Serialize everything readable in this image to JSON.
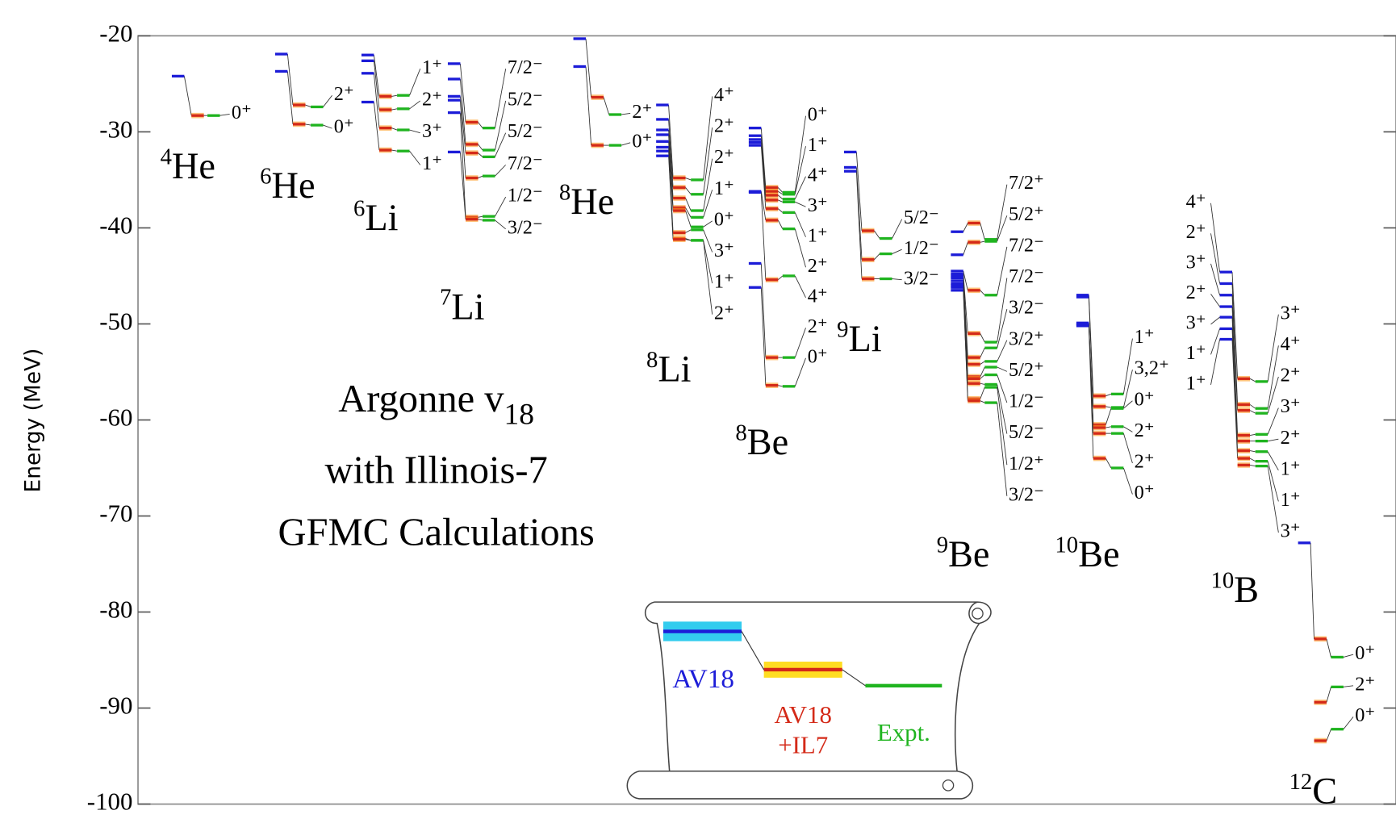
{
  "chart_data": {
    "type": "levels",
    "ylabel": "Energy (MeV)",
    "ylim": [
      -100,
      -20
    ],
    "yticks": [
      -100,
      -90,
      -80,
      -70,
      -60,
      -50,
      -40,
      -30,
      -20
    ],
    "colors": {
      "av18": "#1c1cd8",
      "il7": "#d42a18",
      "expt": "#1fb41f"
    },
    "annotation": {
      "line1": "Argonne v",
      "line1_sub": "18",
      "line2": "with Illinois-7",
      "line3": "GFMC Calculations"
    },
    "legend": {
      "av18": "AV18",
      "il7_top": "AV18",
      "il7_bottom": "+IL7",
      "expt": "Expt."
    },
    "nuclei": [
      {
        "mass": "4",
        "symbol": "He",
        "av18": [
          -24.2
        ],
        "il7": [
          -28.3
        ],
        "expt": [
          -28.3
        ],
        "labels": [
          "0⁺"
        ]
      },
      {
        "mass": "6",
        "symbol": "He",
        "av18": [
          -21.9,
          -23.7
        ],
        "il7": [
          -27.2,
          -29.2
        ],
        "expt": [
          -27.4,
          -29.3
        ],
        "labels": [
          "2⁺",
          "0⁺"
        ]
      },
      {
        "mass": "6",
        "symbol": "Li",
        "av18": [
          -22.0,
          -22.6,
          -23.9,
          -26.9
        ],
        "il7": [
          -26.3,
          -27.7,
          -29.6,
          -31.9
        ],
        "expt": [
          -26.2,
          -27.6,
          -29.8,
          -32.0
        ],
        "labels": [
          "1⁺",
          "2⁺",
          "3⁺",
          "1⁺"
        ]
      },
      {
        "mass": "7",
        "symbol": "Li",
        "av18": [
          -22.9,
          -24.5,
          -26.3,
          -26.7,
          -28.0,
          -32.1
        ],
        "il7": [
          -29.0,
          -31.3,
          -32.2,
          -34.8,
          -38.9,
          -39.1
        ],
        "expt": [
          -29.6,
          -31.9,
          -32.6,
          -34.6,
          -38.8,
          -39.2
        ],
        "labels": [
          "7/2⁻",
          "5/2⁻",
          "5/2⁻",
          "7/2⁻",
          "1/2⁻",
          "3/2⁻"
        ]
      },
      {
        "mass": "8",
        "symbol": "He",
        "av18": [
          -20.3,
          -23.2
        ],
        "il7": [
          -26.4,
          -31.4
        ],
        "expt": [
          -28.2,
          -31.4
        ],
        "labels": [
          "2⁺",
          "0⁺"
        ]
      },
      {
        "mass": "8",
        "symbol": "Li",
        "av18": [
          -27.2,
          -28.7,
          -29.8,
          -30.3,
          -31.0,
          -31.6,
          -32.0,
          -32.5
        ],
        "il7": [
          -34.8,
          -35.8,
          -36.9,
          -37.9,
          -38.2,
          -40.5,
          -41.1,
          -41.2
        ],
        "expt": [
          -35.0,
          -36.5,
          -38.2,
          -38.9,
          -39.9,
          -40.2,
          -41.3,
          -41.3
        ],
        "labels": [
          "4⁺",
          "2⁺",
          "2⁺",
          "1⁺",
          "0⁺",
          "3⁺",
          "1⁺",
          "2⁺"
        ]
      },
      {
        "mass": "8",
        "symbol": "Be",
        "av18": [
          -29.6,
          -30.4,
          -30.8,
          -31.1,
          -31.4,
          -36.2,
          -36.3,
          -43.7,
          -46.2
        ],
        "il7": [
          -35.8,
          -36.2,
          -36.6,
          -37.1,
          -38.0,
          -39.2,
          -45.4,
          -53.5,
          -56.4
        ],
        "expt": [
          -36.3,
          -36.5,
          -37.0,
          -37.3,
          -38.4,
          -40.1,
          -45.0,
          -53.5,
          -56.5
        ],
        "labels": [
          "0⁺",
          "1⁺",
          "4⁺",
          "3⁺",
          "1⁺",
          "2⁺",
          "4⁺",
          "2⁺",
          "0⁺"
        ]
      },
      {
        "mass": "9",
        "symbol": "Li",
        "av18": [
          -32.1,
          -33.7,
          -34.1
        ],
        "il7": [
          -40.3,
          -43.3,
          -45.3
        ],
        "expt": [
          -41.1,
          -42.7,
          -45.3
        ],
        "labels": [
          "5/2⁻",
          "1/2⁻",
          "3/2⁻"
        ]
      },
      {
        "mass": "9",
        "symbol": "Be",
        "av18": [
          -40.4,
          -42.8,
          -44.5,
          -44.8,
          -45.0,
          -45.2,
          -45.5,
          -45.8,
          -46.0,
          -46.2,
          -46.5
        ],
        "il7": [
          -39.5,
          -41.5,
          -46.5,
          -51.0,
          -53.5,
          -54.2,
          -55.5,
          -55.7,
          -56.2,
          -57.8,
          -58.0
        ],
        "expt": [
          -41.2,
          -41.4,
          -47.0,
          -51.9,
          -52.5,
          -53.9,
          -54.5,
          -55.3,
          -56.3,
          -56.6,
          -58.2
        ],
        "labels": [
          "7/2⁺",
          "5/2⁺",
          "7/2⁻",
          "7/2⁻",
          "3/2⁻",
          "3/2⁺",
          "5/2⁺",
          "1/2⁻",
          "5/2⁻",
          "1/2⁺",
          "3/2⁻"
        ]
      },
      {
        "mass": "10",
        "symbol": "Be",
        "av18": [
          -47.0,
          -47.2,
          -49.9,
          -50.0,
          -50.1,
          -50.2
        ],
        "il7": [
          -57.5,
          -58.6,
          -60.5,
          -60.8,
          -61.4,
          -64.0
        ],
        "expt": [
          -57.3,
          -58.7,
          -58.8,
          -60.7,
          -61.4,
          -65.0
        ],
        "labels": [
          "1⁺",
          "3,2⁺",
          "0⁺",
          "2⁺",
          "2⁺",
          "0⁺"
        ]
      },
      {
        "mass": "10",
        "symbol": "B",
        "av18": [
          -44.6,
          -45.8,
          -47.0,
          -48.2,
          -49.3,
          -50.5,
          -51.6
        ],
        "av18_labels": [
          "4⁺",
          "2⁺",
          "3⁺",
          "2⁺",
          "3⁺",
          "1⁺",
          "1⁺"
        ],
        "il7": [
          -55.7,
          -58.4,
          -59.0,
          -61.6,
          -62.2,
          -63.2,
          -64.0,
          -64.7
        ],
        "expt": [
          -56.0,
          -58.8,
          -59.3,
          -61.5,
          -62.2,
          -63.3,
          -64.3,
          -64.8
        ],
        "labels": [
          "3⁺",
          "4⁺",
          "2⁺",
          "3⁺",
          "2⁺",
          "1⁺",
          "1⁺",
          "3⁺"
        ]
      },
      {
        "mass": "12",
        "symbol": "C",
        "av18": [
          -72.8
        ],
        "il7": [
          -82.8,
          -89.4,
          -93.4
        ],
        "expt": [
          -84.7,
          -87.8,
          -92.2
        ],
        "labels": [
          "0⁺",
          "2⁺",
          "0⁺"
        ]
      }
    ]
  }
}
